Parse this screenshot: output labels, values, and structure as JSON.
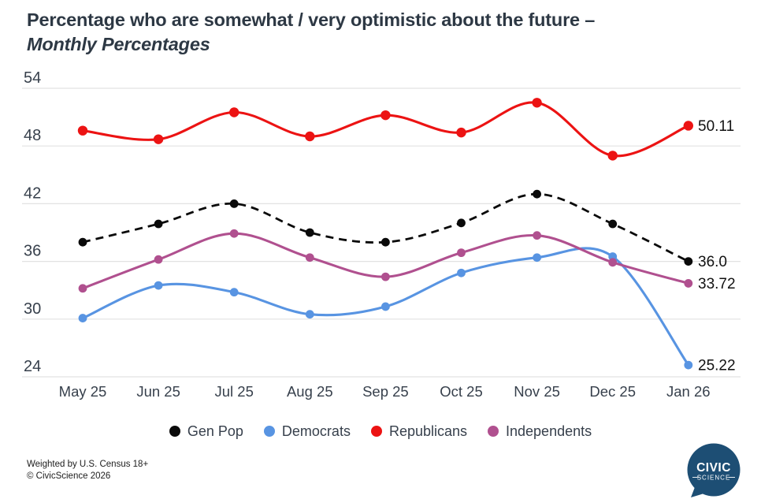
{
  "title": {
    "line1": "Percentage who are somewhat / very optimistic about the future  –",
    "line2": "Monthly Percentages"
  },
  "footer": {
    "line1": "Weighted by U.S. Census 18+",
    "line2": "© CivicScience 2026"
  },
  "logo": {
    "line1": "CIVIC",
    "line2": "SCIENCE",
    "bubble_color": "#1d4e74"
  },
  "colors": {
    "title_text": "#2d3844",
    "axis_text": "#37404c",
    "gridline": "#e2e2e2",
    "end_label_text": "#111111",
    "background": "#ffffff"
  },
  "chart_data": {
    "type": "line",
    "title": "Percentage who are somewhat / very optimistic about the future – Monthly Percentages",
    "categories": [
      "May 25",
      "Jun 25",
      "Jul 25",
      "Aug 25",
      "Sep 25",
      "Oct 25",
      "Nov 25",
      "Dec 25",
      "Jan 26"
    ],
    "series": [
      {
        "name": "Gen Pop",
        "color": "#0a0a0a",
        "dashed": true,
        "values": [
          38.0,
          39.9,
          42.0,
          39.0,
          38.0,
          40.0,
          43.0,
          39.9,
          36.0
        ],
        "end_label": "36.0"
      },
      {
        "name": "Democrats",
        "color": "#5894e2",
        "dashed": false,
        "values": [
          30.1,
          33.5,
          32.8,
          30.5,
          31.3,
          34.8,
          36.4,
          36.5,
          25.22
        ],
        "end_label": "25.22"
      },
      {
        "name": "Republicans",
        "color": "#ec1313",
        "dashed": false,
        "values": [
          49.6,
          48.7,
          51.5,
          49.0,
          51.2,
          49.4,
          52.5,
          47.0,
          50.11
        ],
        "end_label": "50.11"
      },
      {
        "name": "Independents",
        "color": "#b0508f",
        "dashed": false,
        "values": [
          33.2,
          36.2,
          38.9,
          36.4,
          34.4,
          36.9,
          38.7,
          35.9,
          33.72
        ],
        "end_label": "33.72"
      }
    ],
    "xlabel": "",
    "ylabel": "",
    "y_ticks": [
      54,
      48,
      42,
      36,
      30,
      24
    ],
    "ylim": [
      24,
      54
    ],
    "grid": true,
    "legend_position": "bottom"
  }
}
